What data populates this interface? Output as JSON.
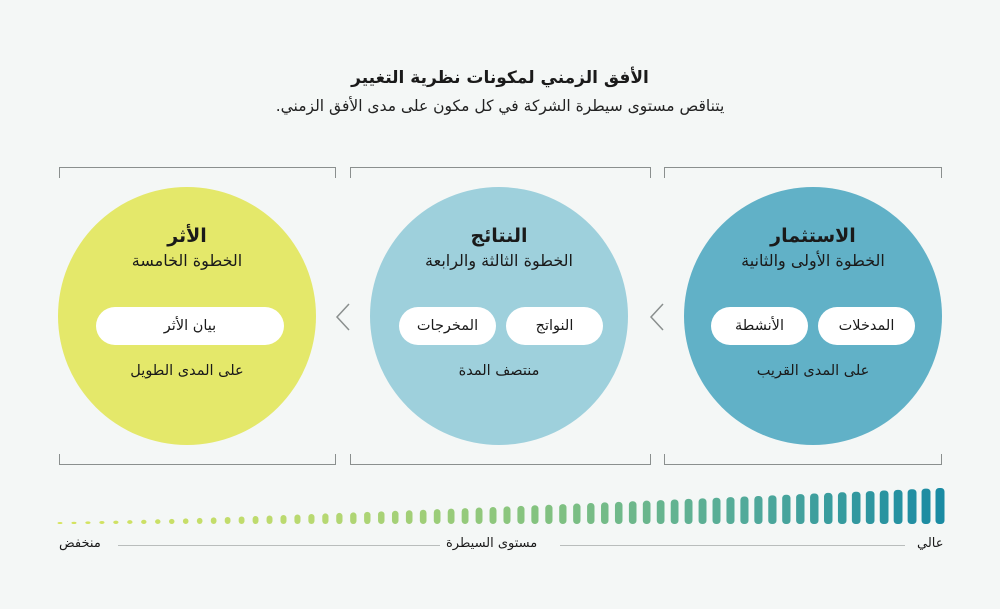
{
  "header": {
    "title": "الأفق الزمني لمكونات نظرية التغيير",
    "subtitle": "يتناقص مستوى سيطرة الشركة في كل مكون على مدى الأفق الزمني."
  },
  "stages": {
    "investment": {
      "name": "الاستثمار",
      "step": "الخطوة الأولى والثانية",
      "items": [
        "المدخلات",
        "الأنشطة"
      ],
      "term": "على المدى القريب",
      "color": "#61b1c7"
    },
    "results": {
      "name": "النتائج",
      "step": "الخطوة الثالثة والرابعة",
      "items": [
        "النواتج",
        "المخرجات"
      ],
      "term": "منتصف المدة",
      "color": "#9ed0dc"
    },
    "impact": {
      "name": "الأثر",
      "step": "الخطوة الخامسة",
      "items": [
        "بيان الأثر"
      ],
      "term": "على المدى الطويل",
      "color": "#e4e86a"
    }
  },
  "control_scale": {
    "label": "مستوى السيطرة",
    "high": "عالي",
    "low": "منخفض",
    "color_high": "#1f8ea1",
    "color_low": "#d9e669"
  }
}
